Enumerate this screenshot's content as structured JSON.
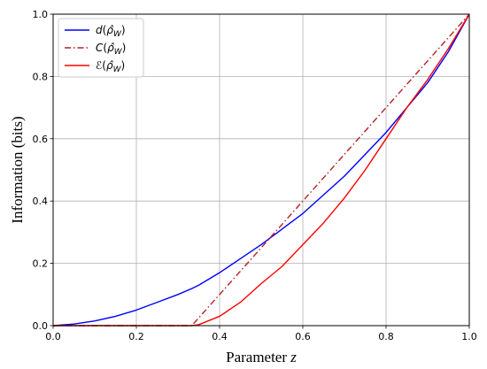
{
  "chart_data": {
    "type": "line",
    "title": "",
    "xlabel": "Parameter ",
    "xlabel_var": "z",
    "ylabel": "Information (bits)",
    "xlim": [
      0.0,
      1.0
    ],
    "ylim": [
      0.0,
      1.0
    ],
    "grid": true,
    "legend_position": "upper-left",
    "xticks": [
      "0.0",
      "0.2",
      "0.4",
      "0.6",
      "0.8",
      "1.0"
    ],
    "yticks": [
      "0.0",
      "0.2",
      "0.4",
      "0.6",
      "0.8",
      "1.0"
    ],
    "x": [
      0.0,
      0.05,
      0.1,
      0.15,
      0.2,
      0.25,
      0.3,
      0.333,
      0.35,
      0.4,
      0.45,
      0.5,
      0.55,
      0.6,
      0.65,
      0.7,
      0.75,
      0.8,
      0.85,
      0.9,
      0.95,
      1.0
    ],
    "series": [
      {
        "name": "d(ρ̂_W)",
        "color": "#0000ff",
        "dash": "solid",
        "values": [
          0.0,
          0.005,
          0.015,
          0.03,
          0.05,
          0.075,
          0.1,
          0.119,
          0.13,
          0.17,
          0.215,
          0.26,
          0.31,
          0.36,
          0.42,
          0.48,
          0.55,
          0.62,
          0.7,
          0.78,
          0.88,
          1.0
        ]
      },
      {
        "name": "C(ρ̂_W)",
        "color": "#b22222",
        "dash": "dashdot",
        "values": [
          0.0,
          0.0,
          0.0,
          0.0,
          0.0,
          0.0,
          0.0,
          0.0,
          0.025,
          0.1,
          0.175,
          0.25,
          0.325,
          0.4,
          0.475,
          0.55,
          0.625,
          0.7,
          0.775,
          0.85,
          0.925,
          1.0
        ]
      },
      {
        "name": "ℰ(ρ̂_W)",
        "color": "#ff0000",
        "dash": "solid",
        "values": [
          0.0,
          0.0,
          0.0,
          0.0,
          0.0,
          0.0,
          0.0,
          0.0,
          0.003,
          0.03,
          0.075,
          0.135,
          0.19,
          0.26,
          0.33,
          0.41,
          0.5,
          0.6,
          0.7,
          0.79,
          0.89,
          1.0
        ]
      }
    ]
  },
  "legend": {
    "entries": [
      {
        "fn": "d",
        "color": "#0000ff",
        "dash": "solid"
      },
      {
        "fn": "C",
        "color": "#b22222",
        "dash": "dashdot"
      },
      {
        "fn": "ℰ",
        "color": "#ff0000",
        "dash": "solid"
      }
    ],
    "arg_hat": "ρ",
    "arg_sub": "W"
  }
}
